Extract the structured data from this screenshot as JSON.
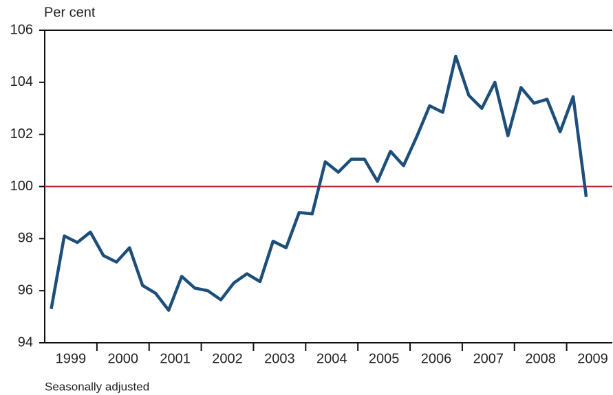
{
  "chart_data": {
    "type": "line",
    "y_label": "Per cent",
    "note": "Seasonally adjusted",
    "x": [
      1999.125,
      1999.375,
      1999.625,
      1999.875,
      2000.125,
      2000.375,
      2000.625,
      2000.875,
      2001.125,
      2001.375,
      2001.625,
      2001.875,
      2002.125,
      2002.375,
      2002.625,
      2002.875,
      2003.125,
      2003.375,
      2003.625,
      2003.875,
      2004.125,
      2004.375,
      2004.625,
      2004.875,
      2005.125,
      2005.375,
      2005.625,
      2005.875,
      2006.125,
      2006.375,
      2006.625,
      2006.875,
      2007.125,
      2007.375,
      2007.625,
      2007.875,
      2008.125,
      2008.375,
      2008.625,
      2008.875,
      2009.125,
      2009.375
    ],
    "series": [
      {
        "color": "#1d4f7a",
        "values": [
          95.3,
          98.1,
          97.85,
          98.25,
          97.35,
          97.1,
          97.65,
          96.2,
          95.9,
          95.25,
          96.55,
          96.1,
          96.0,
          95.65,
          96.3,
          96.65,
          96.35,
          97.9,
          97.65,
          99.0,
          98.95,
          100.95,
          100.55,
          101.05,
          101.05,
          100.2,
          101.35,
          100.8,
          101.9,
          103.1,
          102.85,
          105.0,
          103.5,
          103.0,
          104.0,
          101.95,
          103.8,
          103.2,
          103.35,
          102.1,
          103.45,
          99.6
        ]
      }
    ],
    "reference_line": {
      "value": 100,
      "color": "#c0272d"
    },
    "xlim": [
      1999,
      2009.875
    ],
    "xticks": [
      {
        "value": 1999.5,
        "label": "1999"
      },
      {
        "value": 2000.5,
        "label": "2000"
      },
      {
        "value": 2001.5,
        "label": "2001"
      },
      {
        "value": 2002.5,
        "label": "2002"
      },
      {
        "value": 2003.5,
        "label": "2003"
      },
      {
        "value": 2004.5,
        "label": "2004"
      },
      {
        "value": 2005.5,
        "label": "2005"
      },
      {
        "value": 2006.5,
        "label": "2006"
      },
      {
        "value": 2007.5,
        "label": "2007"
      },
      {
        "value": 2008.5,
        "label": "2008"
      },
      {
        "value": 2009.5,
        "label": "2009"
      }
    ],
    "x_tick_marks": [
      2000,
      2001,
      2002,
      2003,
      2004,
      2005,
      2006,
      2007,
      2008,
      2009
    ],
    "ylim": [
      94,
      106
    ],
    "yticks": [
      94,
      96,
      98,
      100,
      102,
      104,
      106
    ]
  }
}
